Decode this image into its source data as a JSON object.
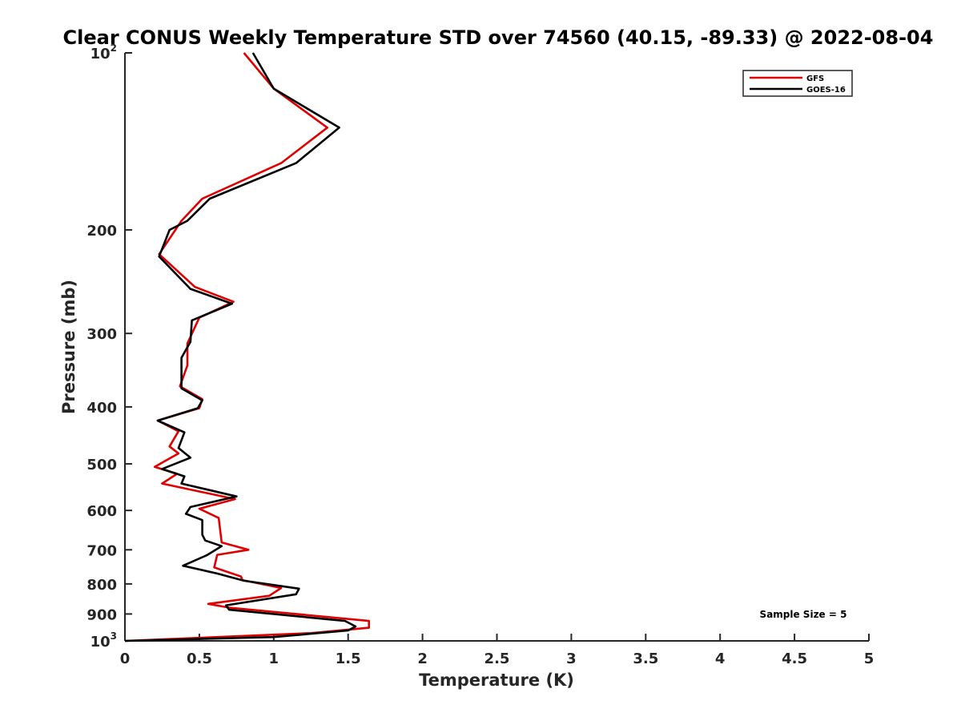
{
  "chart_data": {
    "type": "line",
    "title": "Clear CONUS Weekly Temperature STD over 74560 (40.15, -89.33) @ 2022-08-04",
    "xlabel": "Temperature (K)",
    "ylabel": "Pressure (mb)",
    "xlim": [
      0,
      5
    ],
    "ylim": [
      100,
      1000
    ],
    "yscale": "log",
    "y_reversed": true,
    "grid": false,
    "legend_position": "top-right",
    "annotation": "Sample Size = 5",
    "x_ticks": [
      "0",
      "0.5",
      "1",
      "1.5",
      "2",
      "2.5",
      "3",
      "3.5",
      "4",
      "4.5",
      "5"
    ],
    "y_ticks": [
      {
        "value": 100,
        "base": "10",
        "exp": "2"
      },
      {
        "value": 200,
        "label": "200"
      },
      {
        "value": 300,
        "label": "300"
      },
      {
        "value": 400,
        "label": "400"
      },
      {
        "value": 500,
        "label": "500"
      },
      {
        "value": 600,
        "label": "600"
      },
      {
        "value": 700,
        "label": "700"
      },
      {
        "value": 800,
        "label": "800"
      },
      {
        "value": 900,
        "label": "900"
      },
      {
        "value": 1000,
        "base": "10",
        "exp": "3"
      }
    ],
    "series": [
      {
        "name": "GFS",
        "color": "#e00000",
        "points": [
          [
            0.8,
            100
          ],
          [
            1.0,
            115
          ],
          [
            1.36,
            134
          ],
          [
            1.05,
            154
          ],
          [
            0.52,
            177
          ],
          [
            0.38,
            193
          ],
          [
            0.23,
            220
          ],
          [
            0.47,
            250
          ],
          [
            0.73,
            265
          ],
          [
            0.5,
            282
          ],
          [
            0.42,
            312
          ],
          [
            0.42,
            340
          ],
          [
            0.37,
            369
          ],
          [
            0.52,
            388
          ],
          [
            0.5,
            402
          ],
          [
            0.22,
            422
          ],
          [
            0.36,
            440
          ],
          [
            0.3,
            467
          ],
          [
            0.36,
            480
          ],
          [
            0.2,
            506
          ],
          [
            0.35,
            520
          ],
          [
            0.25,
            540
          ],
          [
            0.74,
            574
          ],
          [
            0.5,
            596
          ],
          [
            0.63,
            618
          ],
          [
            0.65,
            680
          ],
          [
            0.83,
            700
          ],
          [
            0.62,
            714
          ],
          [
            0.6,
            750
          ],
          [
            0.78,
            777
          ],
          [
            0.79,
            788
          ],
          [
            1.05,
            813
          ],
          [
            0.97,
            838
          ],
          [
            0.56,
            865
          ],
          [
            0.7,
            878
          ],
          [
            1.64,
            925
          ],
          [
            1.64,
            950
          ],
          [
            1.25,
            970
          ],
          [
            0.0,
            1000
          ]
        ]
      },
      {
        "name": "GOES-16",
        "color": "#000000",
        "points": [
          [
            0.86,
            100
          ],
          [
            1.0,
            115
          ],
          [
            1.44,
            134
          ],
          [
            1.15,
            154
          ],
          [
            0.57,
            177
          ],
          [
            0.42,
            193
          ],
          [
            0.3,
            200
          ],
          [
            0.23,
            222
          ],
          [
            0.44,
            252
          ],
          [
            0.72,
            267
          ],
          [
            0.45,
            285
          ],
          [
            0.44,
            310
          ],
          [
            0.38,
            330
          ],
          [
            0.38,
            372
          ],
          [
            0.52,
            390
          ],
          [
            0.49,
            402
          ],
          [
            0.22,
            422
          ],
          [
            0.4,
            442
          ],
          [
            0.36,
            470
          ],
          [
            0.44,
            488
          ],
          [
            0.25,
            510
          ],
          [
            0.4,
            525
          ],
          [
            0.38,
            540
          ],
          [
            0.75,
            568
          ],
          [
            0.44,
            592
          ],
          [
            0.41,
            608
          ],
          [
            0.52,
            623
          ],
          [
            0.52,
            660
          ],
          [
            0.54,
            675
          ],
          [
            0.65,
            690
          ],
          [
            0.55,
            715
          ],
          [
            0.39,
            745
          ],
          [
            0.62,
            768
          ],
          [
            0.8,
            790
          ],
          [
            1.17,
            815
          ],
          [
            1.15,
            833
          ],
          [
            0.68,
            870
          ],
          [
            0.7,
            885
          ],
          [
            1.48,
            925
          ],
          [
            1.55,
            945
          ],
          [
            1.5,
            960
          ],
          [
            1.0,
            985
          ],
          [
            0.0,
            1000
          ]
        ]
      }
    ]
  }
}
